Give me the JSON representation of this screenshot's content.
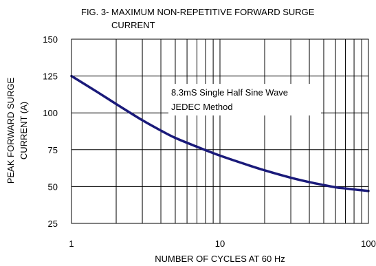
{
  "chart_data": {
    "type": "line",
    "title": "FIG. 3- MAXIMUM NON-REPETITIVE FORWARD SURGE CURRENT",
    "title_lines": [
      "FIG. 3- MAXIMUM NON-REPETITIVE FORWARD SURGE",
      "CURRENT"
    ],
    "xlabel": "NUMBER OF CYCLES AT 60 Hz",
    "ylabel": "PEAK FORWARD SURGE CURRENT (A)",
    "ylabel_lines": [
      "PEAK FORWARD SURGE",
      "CURRENT (A)"
    ],
    "x_scale": "log",
    "xlim": [
      1,
      100
    ],
    "ylim": [
      25,
      150
    ],
    "x_ticks": [
      1,
      10,
      100
    ],
    "x_tick_labels": [
      "1",
      "10",
      "100"
    ],
    "y_ticks": [
      25,
      50,
      75,
      100,
      125,
      150
    ],
    "y_tick_labels": [
      "25",
      "50",
      "75",
      "100",
      "125",
      "150"
    ],
    "grid": true,
    "annotation": [
      "8.3mS Single Half Sine Wave",
      "JEDEC Method"
    ],
    "series": [
      {
        "x": [
          1,
          1.5,
          2,
          3,
          4,
          5,
          7,
          10,
          15,
          20,
          30,
          40,
          50,
          60,
          70,
          80,
          90,
          100
        ],
        "y": [
          125,
          114,
          106,
          95,
          88,
          83,
          77,
          71,
          65,
          61,
          56,
          53,
          51,
          49.5,
          48.7,
          48,
          47.5,
          47
        ]
      }
    ],
    "line_color": "#1a1a7a",
    "grid_color": "#000000"
  }
}
